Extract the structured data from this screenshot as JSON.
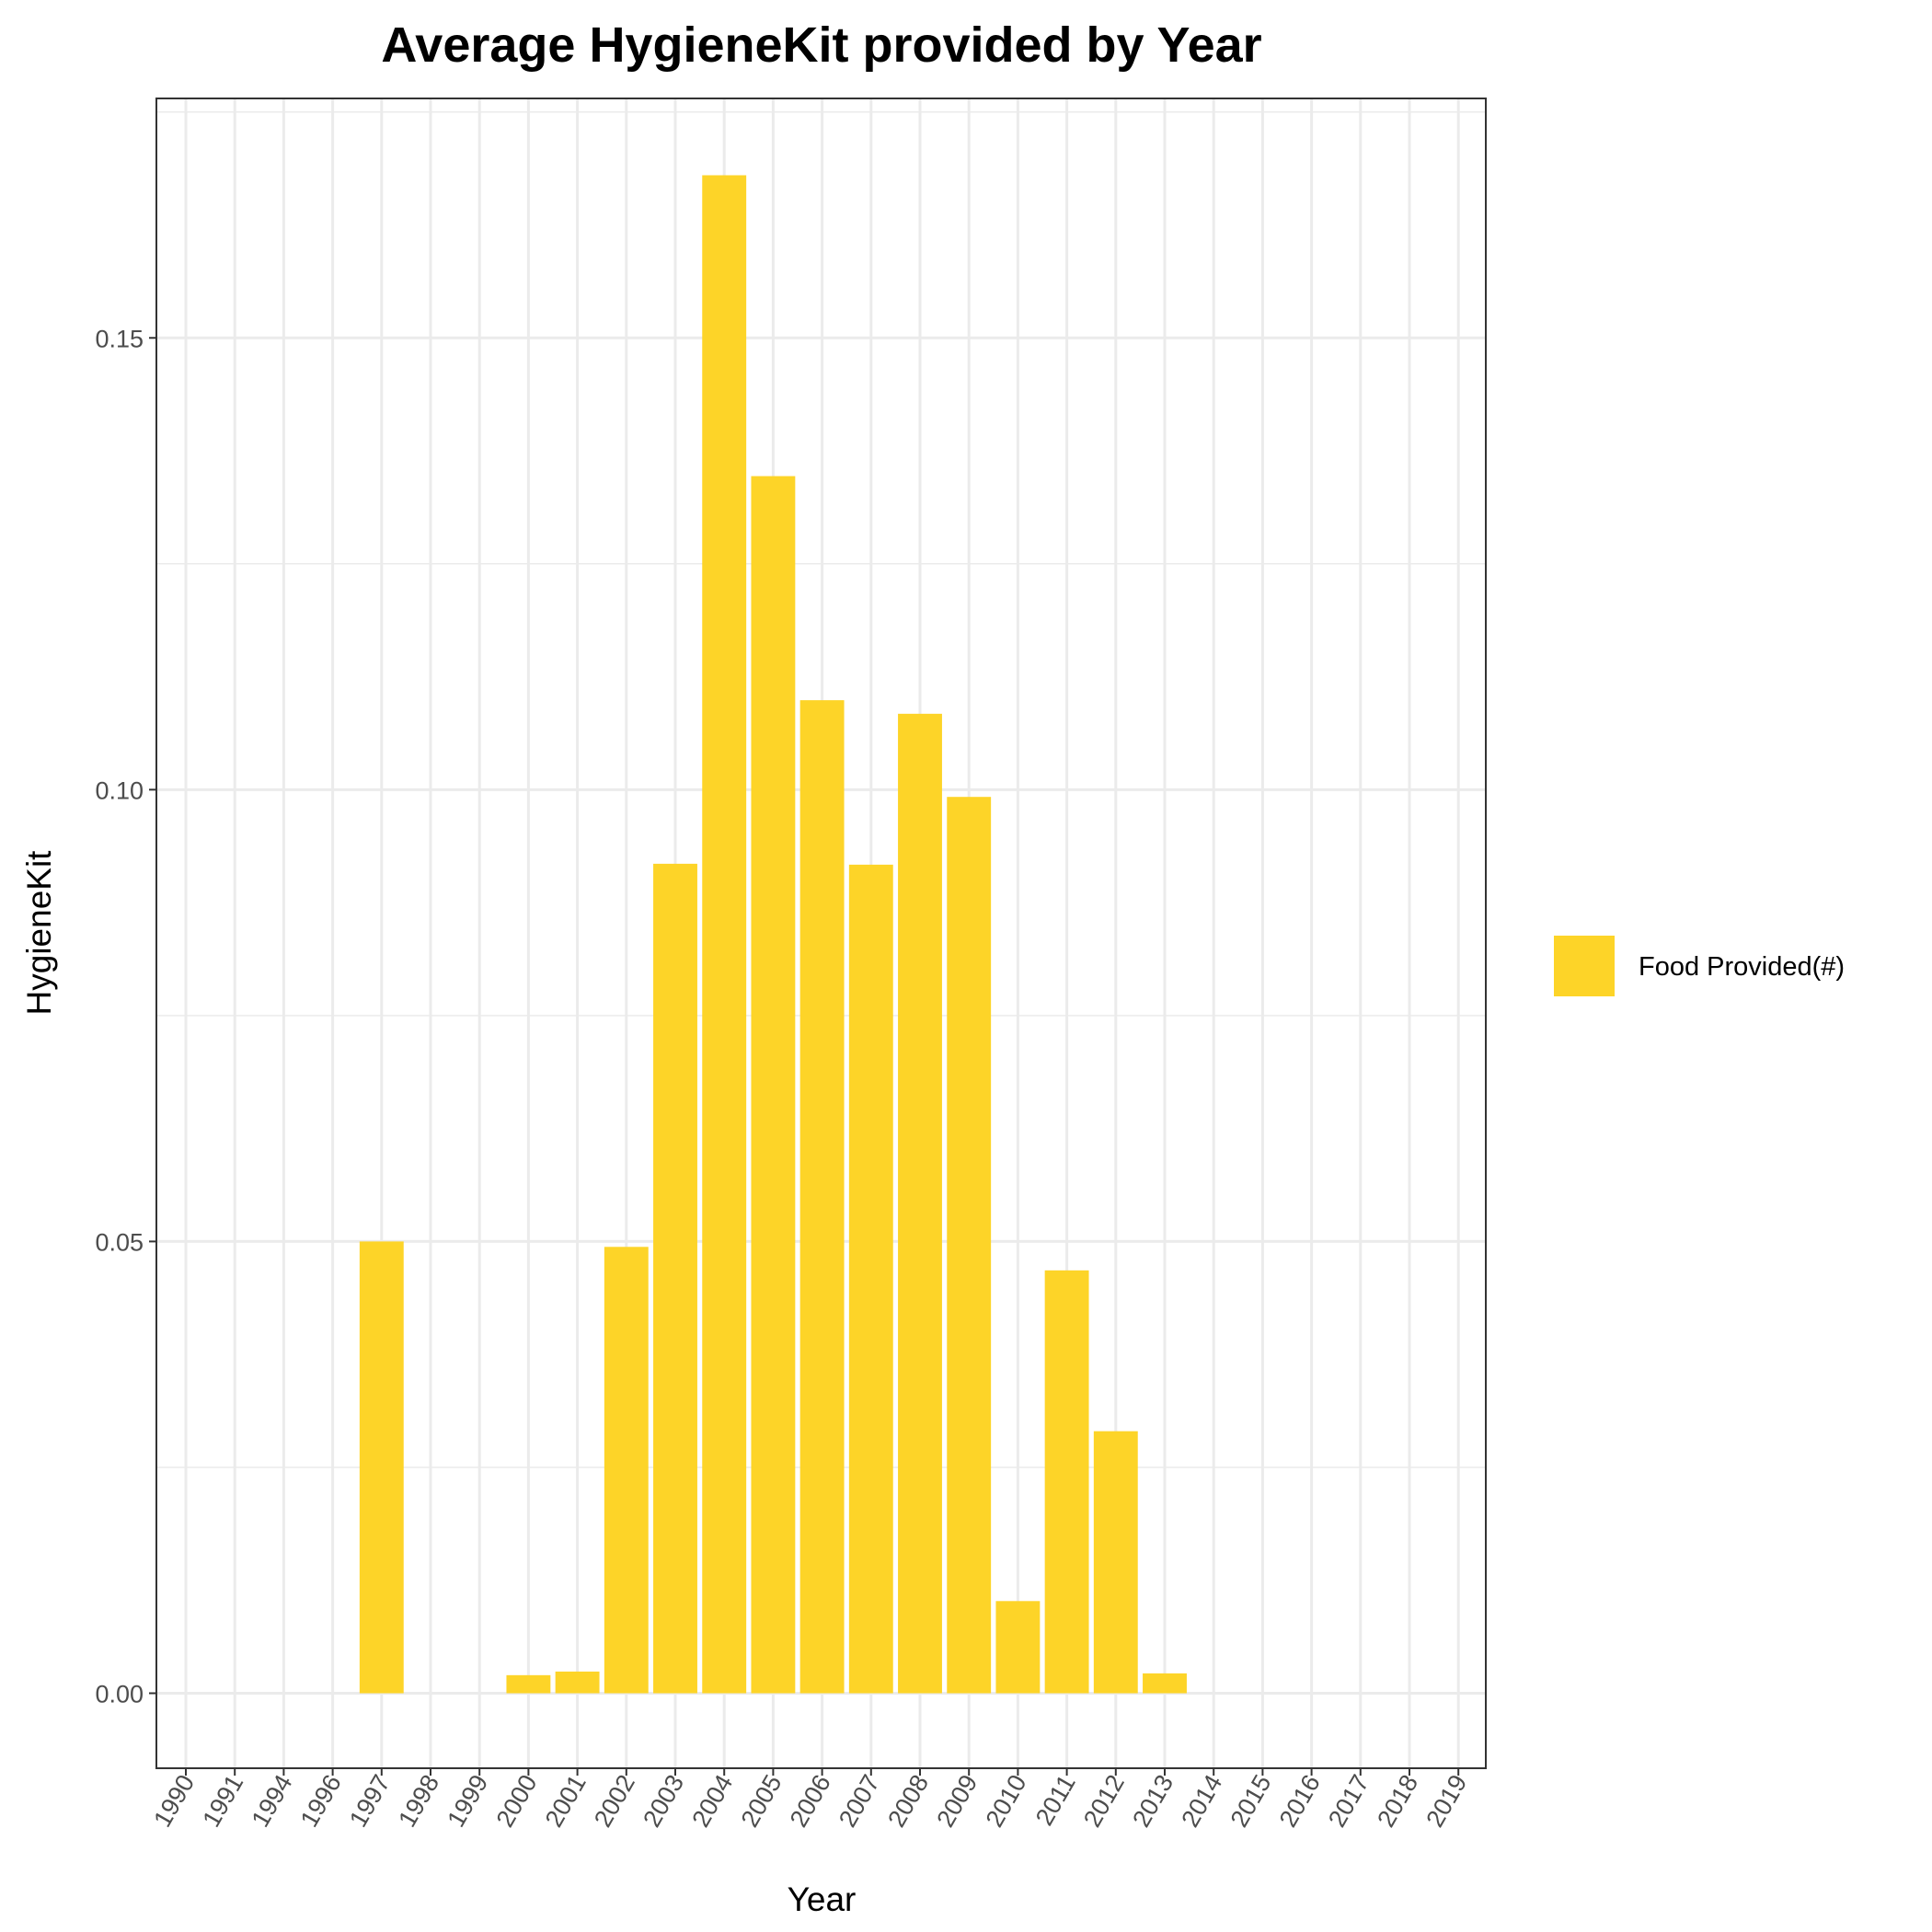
{
  "chart_data": {
    "type": "bar",
    "title": "Average HygieneKit provided by Year",
    "xlabel": "Year",
    "ylabel": "HygieneKit",
    "categories": [
      "1990",
      "1991",
      "1994",
      "1996",
      "1997",
      "1998",
      "1999",
      "2000",
      "2001",
      "2002",
      "2003",
      "2004",
      "2005",
      "2006",
      "2007",
      "2008",
      "2009",
      "2010",
      "2011",
      "2012",
      "2013",
      "2014",
      "2015",
      "2016",
      "2017",
      "2018",
      "2019"
    ],
    "series": [
      {
        "name": "Food Provided(#)",
        "color": "#FDD428",
        "values": [
          0,
          0,
          0,
          0,
          0.05,
          0,
          0,
          0.002,
          0.0024,
          0.0494,
          0.0918,
          0.168,
          0.1347,
          0.1099,
          0.0917,
          0.1084,
          0.0992,
          0.0102,
          0.0468,
          0.029,
          0.0022,
          0,
          0,
          0,
          0,
          0,
          0
        ]
      }
    ],
    "ylim": [
      -0.0083,
      0.1765
    ],
    "yticks": [
      0.0,
      0.05,
      0.1,
      0.15
    ],
    "ytick_labels": [
      "0.00",
      "0.05",
      "0.10",
      "0.15"
    ],
    "grid": true,
    "legend_position": "right"
  }
}
